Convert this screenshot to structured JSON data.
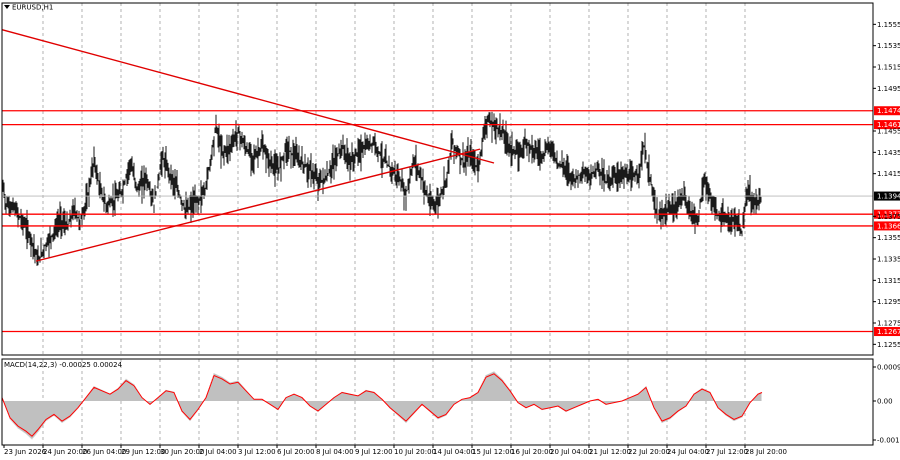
{
  "chart_data": {
    "type": "candlestick",
    "symbol_title": "EURUSD,H1",
    "price_axis": {
      "range": [
        1.1245,
        1.1575
      ],
      "tick_labels": [
        "1.1555",
        "1.1535",
        "1.1515",
        "1.1495",
        "1.1455",
        "1.1435",
        "1.1415",
        "1.1375",
        "1.1355",
        "1.1335",
        "1.1315",
        "1.1295",
        "1.1275",
        "1.1255"
      ]
    },
    "current_price": "1.1394",
    "levels": [
      "1.1474",
      "1.1461",
      "1.1377",
      "1.1366",
      "1.1267"
    ],
    "x_labels": [
      "23 Jun 2026",
      "24 Jun 20:00",
      "26 Jun 04:00",
      "29 Jun 12:00",
      "30 Jun 20:00",
      "2 Jul 04:00",
      "3 Jul 12:00",
      "6 Jul 20:00",
      "8 Jul 04:00",
      "9 Jul 12:00",
      "10 Jul 20:00",
      "14 Jul 04:00",
      "15 Jul 12:00",
      "16 Jul 20:00",
      "20 Jul 04:00",
      "21 Jul 12:00",
      "22 Jul 20:00",
      "24 Jul 04:00",
      "27 Jul 12:00",
      "28 Jul 20:00"
    ],
    "price_series": [
      [
        0,
        1.141
      ],
      [
        4,
        1.1386
      ],
      [
        12,
        1.1383
      ],
      [
        22,
        1.1368
      ],
      [
        30,
        1.1352
      ],
      [
        36,
        1.1333
      ],
      [
        44,
        1.1349
      ],
      [
        52,
        1.136
      ],
      [
        58,
        1.1372
      ],
      [
        66,
        1.1365
      ],
      [
        72,
        1.1382
      ],
      [
        78,
        1.137
      ],
      [
        85,
        1.139
      ],
      [
        92,
        1.1428
      ],
      [
        98,
        1.14
      ],
      [
        104,
        1.1385
      ],
      [
        112,
        1.139
      ],
      [
        120,
        1.1398
      ],
      [
        128,
        1.1425
      ],
      [
        136,
        1.14
      ],
      [
        144,
        1.1412
      ],
      [
        152,
        1.1386
      ],
      [
        160,
        1.143
      ],
      [
        168,
        1.1415
      ],
      [
        176,
        1.1398
      ],
      [
        184,
        1.138
      ],
      [
        190,
        1.1386
      ],
      [
        197,
        1.139
      ],
      [
        203,
        1.14
      ],
      [
        208,
        1.1425
      ],
      [
        214,
        1.146
      ],
      [
        220,
        1.1435
      ],
      [
        228,
        1.144
      ],
      [
        236,
        1.1455
      ],
      [
        244,
        1.1438
      ],
      [
        252,
        1.143
      ],
      [
        260,
        1.144
      ],
      [
        268,
        1.1425
      ],
      [
        276,
        1.1418
      ],
      [
        284,
        1.144
      ],
      [
        292,
        1.1432
      ],
      [
        300,
        1.1425
      ],
      [
        308,
        1.1418
      ],
      [
        316,
        1.1408
      ],
      [
        324,
        1.141
      ],
      [
        332,
        1.1426
      ],
      [
        340,
        1.144
      ],
      [
        348,
        1.1425
      ],
      [
        356,
        1.1435
      ],
      [
        364,
        1.144
      ],
      [
        372,
        1.1445
      ],
      [
        380,
        1.143
      ],
      [
        388,
        1.142
      ],
      [
        396,
        1.1412
      ],
      [
        404,
        1.1395
      ],
      [
        412,
        1.1428
      ],
      [
        420,
        1.141
      ],
      [
        428,
        1.1386
      ],
      [
        436,
        1.1388
      ],
      [
        444,
        1.141
      ],
      [
        450,
        1.1444
      ],
      [
        456,
        1.1435
      ],
      [
        462,
        1.1425
      ],
      [
        468,
        1.1432
      ],
      [
        476,
        1.142
      ],
      [
        484,
        1.1465
      ],
      [
        492,
        1.146
      ],
      [
        500,
        1.1455
      ],
      [
        508,
        1.144
      ],
      [
        516,
        1.1432
      ],
      [
        524,
        1.1445
      ],
      [
        532,
        1.1438
      ],
      [
        540,
        1.1432
      ],
      [
        548,
        1.1442
      ],
      [
        556,
        1.1425
      ],
      [
        564,
        1.142
      ],
      [
        572,
        1.141
      ],
      [
        580,
        1.1415
      ],
      [
        588,
        1.1412
      ],
      [
        596,
        1.1422
      ],
      [
        604,
        1.1408
      ],
      [
        612,
        1.1412
      ],
      [
        620,
        1.1415
      ],
      [
        628,
        1.141
      ],
      [
        636,
        1.1415
      ],
      [
        642,
        1.144
      ],
      [
        648,
        1.141
      ],
      [
        656,
        1.1372
      ],
      [
        664,
        1.138
      ],
      [
        672,
        1.1382
      ],
      [
        680,
        1.1395
      ],
      [
        688,
        1.138
      ],
      [
        696,
        1.1372
      ],
      [
        702,
        1.141
      ],
      [
        708,
        1.1392
      ],
      [
        716,
        1.1376
      ],
      [
        724,
        1.137
      ],
      [
        732,
        1.1372
      ],
      [
        740,
        1.136
      ],
      [
        746,
        1.14
      ],
      [
        752,
        1.1386
      ],
      [
        760,
        1.1394
      ]
    ],
    "macd": {
      "label": "MACD(14,22,3) -0.00025 0.00024",
      "tick_labels": [
        "0.00092",
        "0.00",
        "-0.00107"
      ],
      "series": [
        [
          0,
          0.0001
        ],
        [
          8,
          -0.0005
        ],
        [
          16,
          -0.00075
        ],
        [
          24,
          -0.0009
        ],
        [
          30,
          -0.00105
        ],
        [
          36,
          -0.00085
        ],
        [
          44,
          -0.00055
        ],
        [
          52,
          -0.0004
        ],
        [
          60,
          -0.0006
        ],
        [
          68,
          -0.00045
        ],
        [
          76,
          -0.0002
        ],
        [
          84,
          0.0001
        ],
        [
          92,
          0.0004
        ],
        [
          100,
          0.0003
        ],
        [
          108,
          0.0002
        ],
        [
          116,
          0.00035
        ],
        [
          124,
          0.0006
        ],
        [
          132,
          0.00045
        ],
        [
          140,
          0.0001
        ],
        [
          148,
          -0.0001
        ],
        [
          156,
          0.0001
        ],
        [
          164,
          0.0003
        ],
        [
          172,
          0.00025
        ],
        [
          180,
          -0.0003
        ],
        [
          188,
          -0.00055
        ],
        [
          196,
          -0.00025
        ],
        [
          204,
          0.0001
        ],
        [
          212,
          0.00075
        ],
        [
          220,
          0.00065
        ],
        [
          228,
          0.0005
        ],
        [
          236,
          0.00055
        ],
        [
          244,
          0.0003
        ],
        [
          252,
          5e-05
        ],
        [
          260,
          5e-05
        ],
        [
          268,
          -0.0001
        ],
        [
          276,
          -0.00025
        ],
        [
          284,
          0.0001
        ],
        [
          292,
          0.0002
        ],
        [
          300,
          0.0001
        ],
        [
          308,
          -0.00015
        ],
        [
          316,
          -0.0003
        ],
        [
          324,
          -0.0001
        ],
        [
          332,
          0.0001
        ],
        [
          340,
          0.00025
        ],
        [
          348,
          0.0002
        ],
        [
          356,
          0.00015
        ],
        [
          364,
          0.0003
        ],
        [
          372,
          0.00025
        ],
        [
          380,
          5e-05
        ],
        [
          388,
          -0.0002
        ],
        [
          396,
          -0.0004
        ],
        [
          404,
          -0.0006
        ],
        [
          412,
          -0.00035
        ],
        [
          420,
          -0.0001
        ],
        [
          428,
          -0.0003
        ],
        [
          436,
          -0.0005
        ],
        [
          444,
          -0.0004
        ],
        [
          452,
          -0.0001
        ],
        [
          460,
          5e-05
        ],
        [
          468,
          0.0001
        ],
        [
          476,
          0.00025
        ],
        [
          484,
          0.0007
        ],
        [
          492,
          0.0008
        ],
        [
          500,
          0.0006
        ],
        [
          508,
          0.0003
        ],
        [
          516,
          -5e-05
        ],
        [
          524,
          -0.0002
        ],
        [
          532,
          -0.0001
        ],
        [
          540,
          -0.00025
        ],
        [
          548,
          -0.0002
        ],
        [
          556,
          -0.00015
        ],
        [
          564,
          -0.0003
        ],
        [
          572,
          -0.0002
        ],
        [
          580,
          -0.0001
        ],
        [
          588,
          0.0
        ],
        [
          596,
          5e-05
        ],
        [
          604,
          -0.0001
        ],
        [
          612,
          -5e-05
        ],
        [
          620,
          0.0
        ],
        [
          628,
          0.0001
        ],
        [
          636,
          0.0002
        ],
        [
          644,
          0.0004
        ],
        [
          652,
          -0.0002
        ],
        [
          660,
          -0.0006
        ],
        [
          668,
          -0.0005
        ],
        [
          676,
          -0.0003
        ],
        [
          684,
          -0.00015
        ],
        [
          692,
          0.0002
        ],
        [
          700,
          0.00035
        ],
        [
          708,
          0.00025
        ],
        [
          716,
          -0.0002
        ],
        [
          724,
          -0.0004
        ],
        [
          732,
          -0.00055
        ],
        [
          740,
          -0.00045
        ],
        [
          748,
          -5e-05
        ],
        [
          756,
          0.0002
        ],
        [
          760,
          0.00025
        ]
      ]
    },
    "colors": {
      "trendline": "#e00000",
      "level_line": "#ff0000",
      "level_label_bg": "#ff0000",
      "price": "#000000",
      "macd_hist": "#c0c0c0",
      "macd_signal": "#ff0000",
      "grid": "#a0a0a0",
      "current_price_bg": "#000000"
    }
  }
}
